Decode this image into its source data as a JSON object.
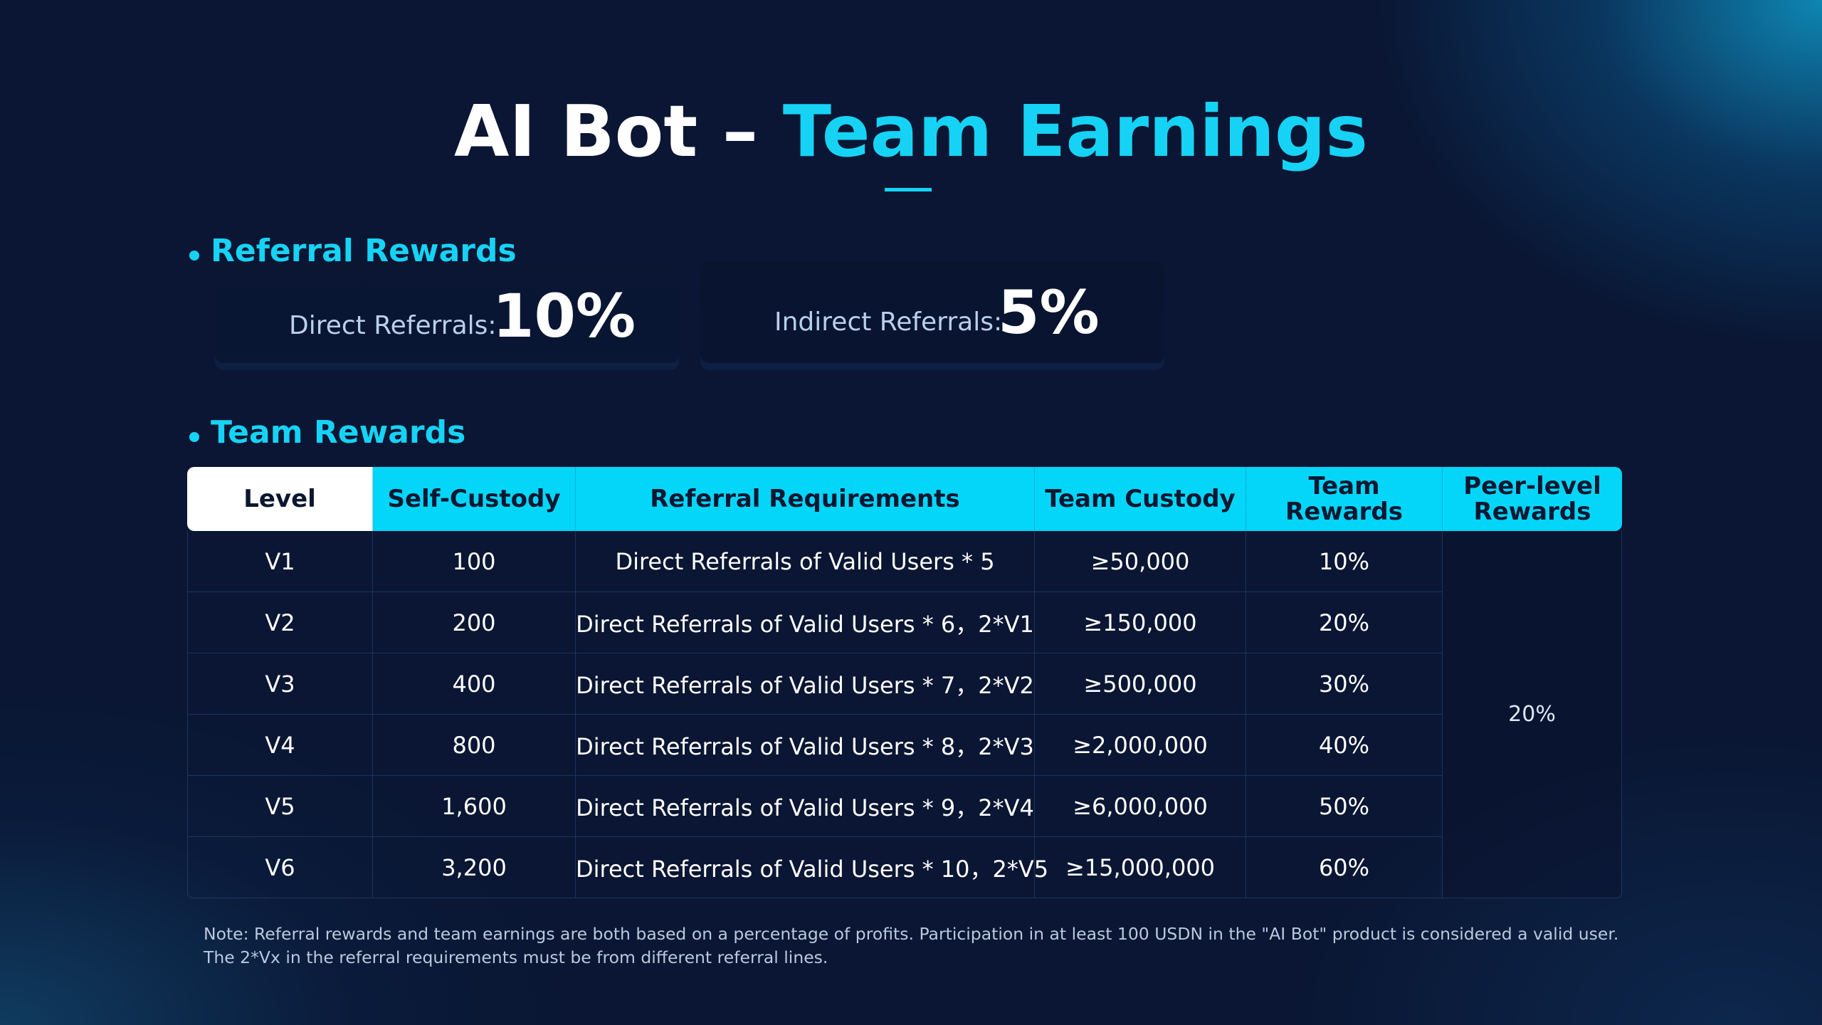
{
  "title": {
    "part1": "AI Bot – ",
    "part2": "Team Earnings"
  },
  "referral_rewards": {
    "heading": "Referral Rewards",
    "direct_label": "Direct Referrals:",
    "direct_value": "10%",
    "indirect_label": "Indirect Referrals:",
    "indirect_value": "5%"
  },
  "team_rewards": {
    "heading": "Team Rewards",
    "columns": [
      "Level",
      "Self-Custody",
      "Referral Requirements",
      "Team Custody",
      "Team Rewards",
      "Peer-level Rewards"
    ],
    "rows": [
      {
        "level": "V1",
        "self_custody": "100",
        "requirements": "Direct Referrals of Valid Users * 5",
        "team_custody": "≥50,000",
        "team_rewards": "10%"
      },
      {
        "level": "V2",
        "self_custody": "200",
        "requirements": "Direct Referrals of Valid Users * 6，2*V1",
        "team_custody": "≥150,000",
        "team_rewards": "20%"
      },
      {
        "level": "V3",
        "self_custody": "400",
        "requirements": "Direct Referrals of Valid Users * 7，2*V2",
        "team_custody": "≥500,000",
        "team_rewards": "30%"
      },
      {
        "level": "V4",
        "self_custody": "800",
        "requirements": "Direct Referrals of Valid Users * 8，2*V3",
        "team_custody": "≥2,000,000",
        "team_rewards": "40%"
      },
      {
        "level": "V5",
        "self_custody": "1,600",
        "requirements": "Direct Referrals of Valid Users * 9，2*V4",
        "team_custody": "≥6,000,000",
        "team_rewards": "50%"
      },
      {
        "level": "V6",
        "self_custody": "3,200",
        "requirements": "Direct Referrals of Valid Users * 10，2*V5",
        "team_custody": "≥15,000,000",
        "team_rewards": "60%"
      }
    ],
    "peer_level_rewards": "20%"
  },
  "note": "Note: Referral rewards and team earnings are both based on a percentage of profits. Participation in at least 100 USDN in the \"AI Bot\" product is considered a valid user. The 2*Vx in the referral requirements must be from different referral lines.",
  "colors": {
    "accent": "#16d3f5",
    "header_bg": "#03d6f8",
    "background": "#0a1633"
  }
}
